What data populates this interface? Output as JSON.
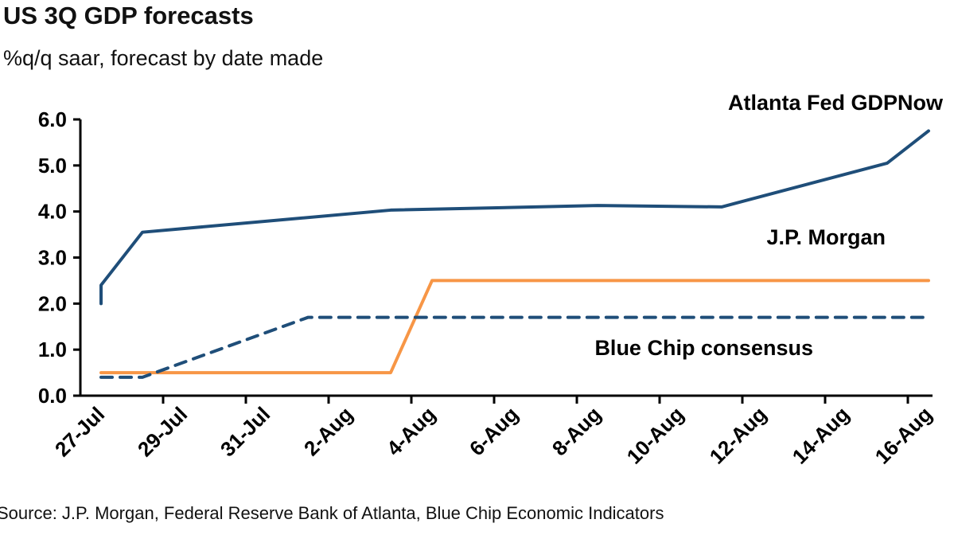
{
  "chart_data": {
    "type": "line",
    "title": "US 3Q GDP forecasts",
    "subtitle": "%q/q saar, forecast by date made",
    "source": "Source: J.P. Morgan, Federal Reserve Bank of Atlanta, Blue Chip Economic Indicators",
    "ylim": [
      0,
      6
    ],
    "y_ticks": [
      "0.0",
      "1.0",
      "2.0",
      "3.0",
      "4.0",
      "5.0",
      "6.0"
    ],
    "x_tick_labels": [
      "27-Jul",
      "29-Jul",
      "31-Jul",
      "2-Aug",
      "4-Aug",
      "6-Aug",
      "8-Aug",
      "10-Aug",
      "12-Aug",
      "14-Aug",
      "16-Aug"
    ],
    "x_tick_dates": [
      "2021-07-27",
      "2021-07-29",
      "2021-07-31",
      "2021-08-02",
      "2021-08-04",
      "2021-08-06",
      "2021-08-08",
      "2021-08-10",
      "2021-08-12",
      "2021-08-14",
      "2021-08-16"
    ],
    "xlim": [
      "2021-07-26",
      "2021-08-17"
    ],
    "grid": false,
    "series": [
      {
        "name": "Atlanta Fed GDPNow",
        "color": "#1f4e79",
        "dash": false,
        "points": [
          [
            "2021-07-27",
            2.0
          ],
          [
            "2021-07-27",
            2.4
          ],
          [
            "2021-07-28",
            3.55
          ],
          [
            "2021-08-03",
            4.03
          ],
          [
            "2021-08-08",
            4.13
          ],
          [
            "2021-08-11",
            4.1
          ],
          [
            "2021-08-15",
            5.05
          ],
          [
            "2021-08-16",
            5.75
          ]
        ]
      },
      {
        "name": "J.P. Morgan",
        "color": "#f79646",
        "dash": false,
        "points": [
          [
            "2021-07-27",
            0.5
          ],
          [
            "2021-08-03",
            0.5
          ],
          [
            "2021-08-04",
            2.5
          ],
          [
            "2021-08-16",
            2.5
          ]
        ]
      },
      {
        "name": "Blue Chip consensus",
        "color": "#1f4e79",
        "dash": true,
        "points": [
          [
            "2021-07-27",
            0.4
          ],
          [
            "2021-07-28",
            0.4
          ],
          [
            "2021-08-01",
            1.7
          ],
          [
            "2021-08-16",
            1.7
          ]
        ]
      }
    ]
  }
}
